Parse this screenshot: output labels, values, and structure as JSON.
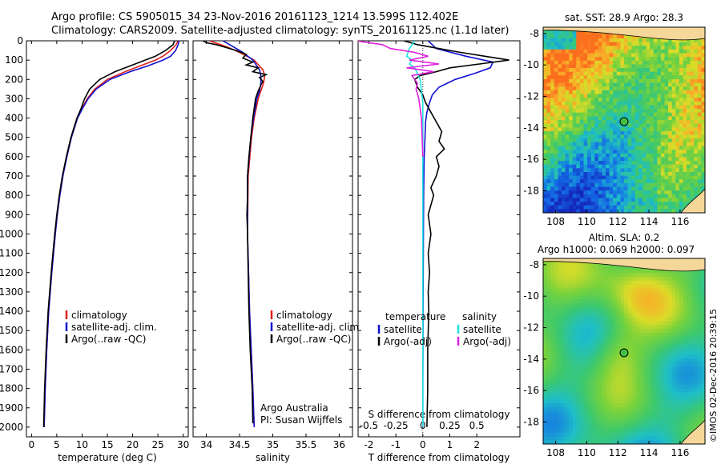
{
  "header": {
    "line1": "Argo profile: CS 5905015_34 23-Nov-2016 20161123_1214 13.599S 112.402E",
    "line2": "Climatology: CARS2009. Satellite-adjusted climatology: synTS_20161125.nc (1.1d later)"
  },
  "colors": {
    "red": "#e0201a",
    "blue": "#1010d0",
    "black": "#000000",
    "cyan": "#20e0e0",
    "magenta": "#e020e0"
  },
  "depth_ticks": [
    "0",
    "100",
    "200",
    "300",
    "400",
    "500",
    "600",
    "700",
    "800",
    "900",
    "1000",
    "1100",
    "1200",
    "1300",
    "1400",
    "1500",
    "1600",
    "1700",
    "1800",
    "1900",
    "2000"
  ],
  "chart_data": [
    {
      "type": "line",
      "xlabel": "temperature (deg C)",
      "xlim": [
        -1,
        31
      ],
      "ylim": [
        2050,
        0
      ],
      "xticks": [
        "0",
        "5",
        "10",
        "15",
        "20",
        "25",
        "30"
      ],
      "xtick_values": [
        0,
        5,
        10,
        15,
        20,
        25,
        30
      ],
      "legend": [
        "climatology",
        "satellite-adj. clim.",
        "Argo(..raw -QC)"
      ],
      "series": [
        {
          "name": "climatology",
          "color": "red",
          "depth": [
            0,
            20,
            50,
            80,
            100,
            130,
            160,
            200,
            250,
            300,
            350,
            400,
            500,
            600,
            700,
            800,
            900,
            1000,
            1200,
            1400,
            1600,
            1800,
            2000
          ],
          "values": [
            29.0,
            28.6,
            27.5,
            26.0,
            24.5,
            21.5,
            18.5,
            15.0,
            12.5,
            11.0,
            10.0,
            9.0,
            7.8,
            6.9,
            6.2,
            5.6,
            5.1,
            4.7,
            4.0,
            3.4,
            3.0,
            2.7,
            2.5
          ]
        },
        {
          "name": "satellite-adj. clim.",
          "color": "blue",
          "depth": [
            0,
            20,
            50,
            80,
            100,
            130,
            160,
            200,
            250,
            300,
            350,
            400,
            500,
            600,
            700,
            800,
            900,
            1000,
            1200,
            1400,
            1600,
            1800,
            2000
          ],
          "values": [
            29.2,
            29.0,
            28.5,
            27.5,
            26.0,
            23.0,
            19.5,
            15.5,
            12.8,
            11.2,
            10.1,
            9.1,
            7.9,
            7.0,
            6.2,
            5.6,
            5.1,
            4.7,
            4.0,
            3.4,
            3.0,
            2.7,
            2.5
          ]
        },
        {
          "name": "Argo(..raw -QC)",
          "color": "black",
          "depth": [
            0,
            20,
            50,
            80,
            100,
            130,
            160,
            200,
            250,
            300,
            350,
            400,
            500,
            600,
            700,
            800,
            900,
            1000,
            1200,
            1400,
            1600,
            1800,
            2000
          ],
          "values": [
            28.3,
            28.0,
            26.5,
            24.5,
            22.5,
            19.5,
            16.5,
            13.5,
            11.5,
            10.5,
            9.8,
            9.0,
            7.8,
            6.9,
            6.1,
            5.5,
            5.0,
            4.6,
            3.9,
            3.3,
            2.9,
            2.6,
            2.4
          ]
        }
      ]
    },
    {
      "type": "line",
      "xlabel": "salinity",
      "xlim": [
        33.8,
        36.2
      ],
      "ylim": [
        2050,
        0
      ],
      "xticks": [
        "34",
        "34.5",
        "35",
        "35.5",
        "36"
      ],
      "xtick_values": [
        34,
        34.5,
        35,
        35.5,
        36
      ],
      "legend": [
        "climatology",
        "satellite-adj. clim.",
        "Argo(..raw -QC)"
      ],
      "annotation": [
        "Argo Australia",
        "PI: Susan Wijffels"
      ],
      "series": [
        {
          "name": "climatology",
          "color": "red",
          "depth": [
            0,
            30,
            60,
            100,
            150,
            180,
            220,
            260,
            300,
            400,
            500,
            700,
            1000,
            1400,
            1800,
            2000
          ],
          "values": [
            34.05,
            34.3,
            34.5,
            34.72,
            34.85,
            34.88,
            34.86,
            34.82,
            34.78,
            34.72,
            34.68,
            34.63,
            34.62,
            34.65,
            34.7,
            34.72
          ]
        },
        {
          "name": "satellite-adj. clim.",
          "color": "blue",
          "depth": [
            0,
            30,
            60,
            100,
            150,
            180,
            220,
            260,
            300,
            400,
            500,
            700,
            1000,
            1400,
            1800,
            2000
          ],
          "values": [
            34.25,
            34.4,
            34.55,
            34.7,
            34.8,
            34.82,
            34.82,
            34.8,
            34.76,
            34.71,
            34.67,
            34.62,
            34.62,
            34.65,
            34.7,
            34.72
          ]
        },
        {
          "name": "Argo(..raw -QC)",
          "color": "black",
          "depth": [
            0,
            10,
            20,
            35,
            50,
            70,
            90,
            110,
            125,
            140,
            160,
            175,
            190,
            210,
            230,
            260,
            300,
            350,
            400,
            500,
            600,
            700,
            800,
            900,
            1000,
            1200,
            1400,
            1600,
            1800,
            1980
          ],
          "values": [
            33.95,
            34.0,
            34.15,
            34.3,
            34.45,
            34.6,
            34.55,
            34.7,
            34.6,
            34.78,
            34.7,
            34.9,
            34.8,
            34.85,
            34.82,
            34.78,
            34.74,
            34.72,
            34.7,
            34.67,
            34.64,
            34.62,
            34.62,
            34.61,
            34.62,
            34.63,
            34.64,
            34.66,
            34.69,
            34.7
          ]
        }
      ]
    },
    {
      "type": "line",
      "xlabel": "T difference from climatology",
      "xlabel_top": "S difference from climatology",
      "xlim": [
        -2.4,
        3.6
      ],
      "ylim": [
        2050,
        0
      ],
      "xticks": [
        "-2",
        "-1",
        "0",
        "1",
        "2"
      ],
      "xtick_values": [
        -2,
        -1,
        0,
        1,
        2
      ],
      "xticks_top": [
        "-0.5",
        "-0.25",
        "0",
        "0.25",
        "0.5"
      ],
      "xtick_top_values": [
        -2,
        -1,
        0,
        1,
        2
      ],
      "legend_left_title": "temperature",
      "legend_left": [
        "satellite",
        "Argo(-adj)"
      ],
      "legend_right_title": "salinity",
      "legend_right": [
        "satellite",
        "Argo(-adj)"
      ],
      "series": [
        {
          "name": "satellite",
          "color": "blue",
          "depth": [
            0,
            40,
            80,
            110,
            140,
            170,
            200,
            240,
            280,
            320,
            370,
            420,
            500,
            600,
            800,
            1000,
            1400,
            1800,
            2000
          ],
          "values": [
            0.2,
            0.5,
            1.6,
            2.6,
            2.5,
            1.9,
            1.2,
            0.6,
            0.35,
            0.25,
            0.15,
            0.1,
            0.08,
            0.05,
            0.03,
            0.02,
            0.01,
            0.0,
            0.0
          ]
        },
        {
          "name": "Argo(-adj)",
          "color": "black",
          "depth": [
            0,
            20,
            40,
            60,
            80,
            100,
            120,
            140,
            160,
            180,
            200,
            240,
            280,
            320,
            370,
            420,
            470,
            520,
            560,
            600,
            650,
            700,
            760,
            800,
            900,
            1000,
            1100,
            1200,
            1300,
            1400,
            1600,
            1800,
            2000
          ],
          "values": [
            -0.7,
            -0.2,
            0.6,
            1.4,
            2.3,
            3.2,
            2.1,
            1.0,
            0.5,
            -0.1,
            -0.3,
            -0.2,
            0.0,
            0.1,
            0.3,
            0.5,
            0.7,
            0.6,
            0.8,
            0.5,
            0.6,
            0.5,
            0.3,
            0.4,
            0.2,
            0.3,
            0.2,
            0.25,
            0.2,
            0.22,
            0.18,
            0.18,
            0.15
          ]
        },
        {
          "name": "satellite",
          "color": "cyan",
          "depth": [
            0,
            40,
            80,
            100,
            120,
            140,
            170,
            200,
            260,
            320,
            400,
            600,
            900,
            1200,
            1500,
            1800,
            2000
          ],
          "values": [
            -0.3,
            -0.5,
            -0.6,
            -0.4,
            -0.5,
            -0.3,
            -0.2,
            -0.1,
            -0.05,
            0.0,
            0.0,
            0.0,
            0.0,
            0.0,
            0.0,
            0.0,
            0.0
          ]
        },
        {
          "name": "Argo(-adj)",
          "color": "magenta",
          "depth": [
            0,
            20,
            40,
            60,
            80,
            100,
            120,
            140,
            160,
            180,
            200,
            220,
            250,
            300,
            400,
            600
          ],
          "values": [
            -2.5,
            -1.5,
            -1.2,
            -0.3,
            0.2,
            -0.5,
            0.6,
            -0.6,
            0.4,
            -0.4,
            -0.3,
            -0.2,
            -0.25,
            -0.15,
            -0.05,
            0.0
          ]
        }
      ]
    },
    {
      "type": "heatmap",
      "title": "sat. SST: 28.9  Argo: 28.3",
      "xlim": [
        107.2,
        117.6
      ],
      "ylim": [
        -19.4,
        -7.6
      ],
      "xticks": [
        "108",
        "110",
        "112",
        "114",
        "116"
      ],
      "xtick_values": [
        108,
        110,
        112,
        114,
        116
      ],
      "yticks": [
        "-8",
        "-10",
        "-12",
        "-14",
        "-16",
        "-18"
      ],
      "ytick_values": [
        -8,
        -10,
        -12,
        -14,
        -16,
        -18
      ],
      "marker": {
        "lon": 112.4,
        "lat": -13.6
      }
    },
    {
      "type": "heatmap",
      "title": "Altim. SLA: 0.2",
      "subtitle": "Argo h1000: 0.069  h2000: 0.097",
      "xlim": [
        107.2,
        117.6
      ],
      "ylim": [
        -19.4,
        -7.6
      ],
      "xticks": [
        "108",
        "110",
        "112",
        "114",
        "116"
      ],
      "xtick_values": [
        108,
        110,
        112,
        114,
        116
      ],
      "yticks": [
        "-8",
        "-10",
        "-12",
        "-14",
        "-16",
        "-18"
      ],
      "ytick_values": [
        -8,
        -10,
        -12,
        -14,
        -16,
        -18
      ],
      "marker": {
        "lon": 112.4,
        "lat": -13.6
      }
    }
  ],
  "side_label": "©IMOS 02-Dec-2016 20:39:15"
}
